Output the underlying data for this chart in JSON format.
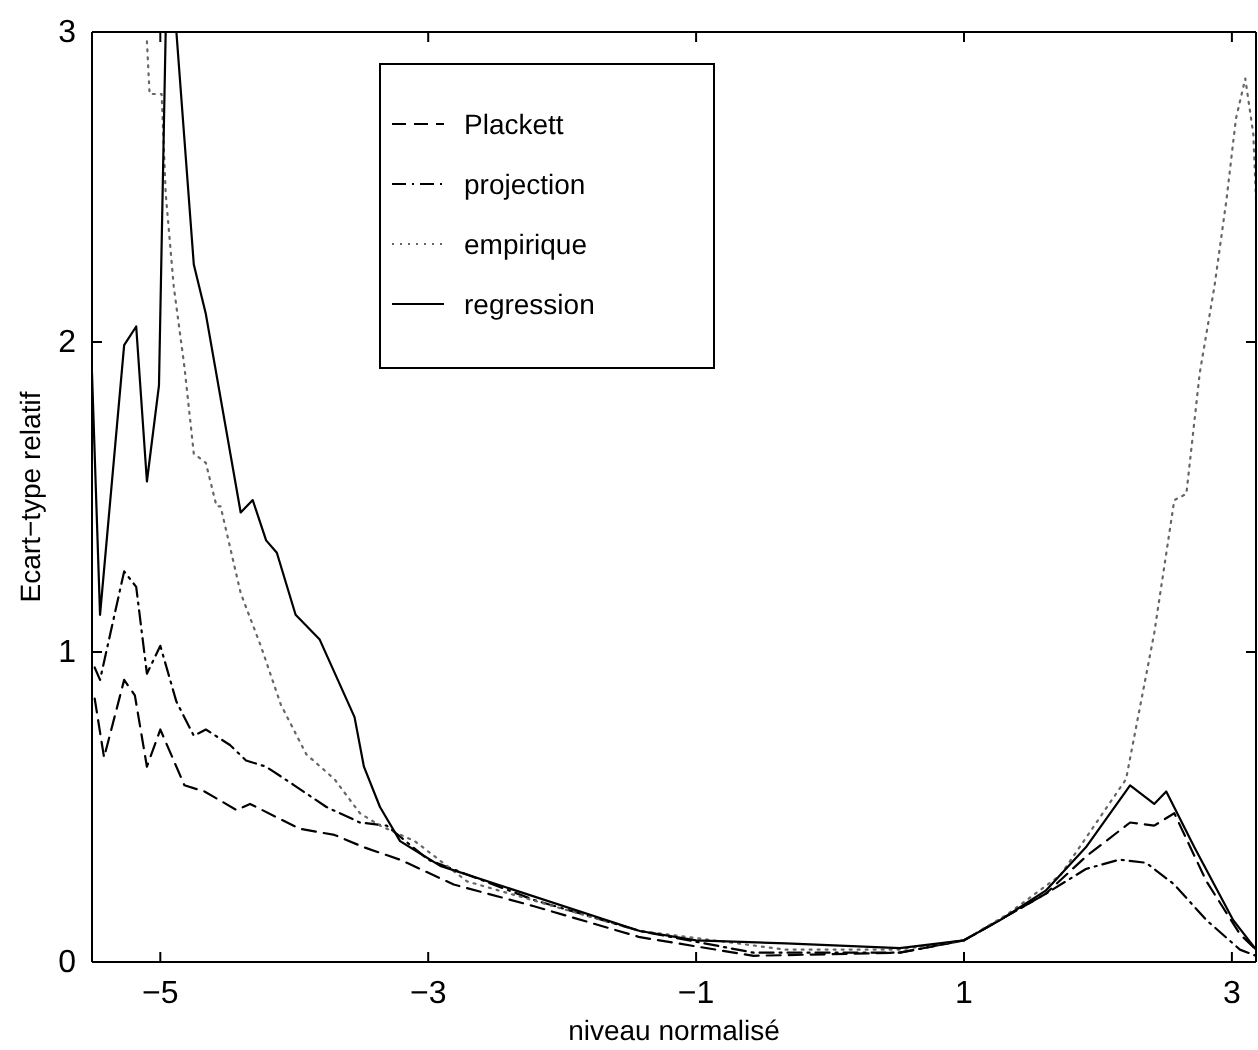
{
  "chart_data": {
    "type": "line",
    "xlabel": "niveau normalisé",
    "ylabel": "Ecart−type relatif",
    "xlim": [
      -5.51,
      3.18
    ],
    "ylim": [
      0,
      3
    ],
    "xticks": [
      -5,
      -3,
      -1,
      1,
      3
    ],
    "yticks": [
      0,
      1,
      2,
      3
    ],
    "grid": false,
    "legend": "top left",
    "series": [
      {
        "name": "Plackett",
        "color": "#000000",
        "line_style": "dashed",
        "x": [
          -5.49,
          -5.42,
          -5.27,
          -5.19,
          -5.1,
          -5.0,
          -4.82,
          -4.67,
          -4.43,
          -4.33,
          -4.1,
          -3.96,
          -3.7,
          -3.48,
          -3.21,
          -2.81,
          -2.21,
          -1.42,
          -0.57,
          0.52,
          1.0,
          1.61,
          1.91,
          2.24,
          2.42,
          2.57,
          2.81,
          3.06,
          3.18
        ],
        "values": [
          0.85,
          0.66,
          0.91,
          0.86,
          0.63,
          0.75,
          0.57,
          0.55,
          0.49,
          0.51,
          0.46,
          0.43,
          0.41,
          0.37,
          0.33,
          0.25,
          0.18,
          0.08,
          0.02,
          0.03,
          0.07,
          0.22,
          0.34,
          0.45,
          0.44,
          0.48,
          0.26,
          0.09,
          0.04
        ]
      },
      {
        "name": "projection",
        "color": "#000000",
        "line_style": "dashdot",
        "x": [
          -5.49,
          -5.45,
          -5.27,
          -5.18,
          -5.1,
          -5.0,
          -4.88,
          -4.75,
          -4.66,
          -4.48,
          -4.36,
          -4.21,
          -4.0,
          -3.76,
          -3.51,
          -3.31,
          -3.0,
          -2.21,
          -1.42,
          -0.57,
          0.52,
          1.0,
          1.61,
          1.91,
          2.16,
          2.36,
          2.57,
          2.81,
          3.06,
          3.18
        ],
        "values": [
          0.95,
          0.91,
          1.26,
          1.21,
          0.93,
          1.02,
          0.84,
          0.73,
          0.75,
          0.7,
          0.65,
          0.63,
          0.57,
          0.5,
          0.45,
          0.44,
          0.33,
          0.2,
          0.1,
          0.03,
          0.03,
          0.07,
          0.22,
          0.3,
          0.33,
          0.32,
          0.25,
          0.135,
          0.04,
          0.02
        ]
      },
      {
        "name": "empirique",
        "color": "#666666",
        "line_style": "dotted",
        "x": [
          -5.1,
          -5.08,
          -4.99,
          -4.96,
          -4.9,
          -4.82,
          -4.75,
          -4.66,
          -4.58,
          -4.55,
          -4.4,
          -4.25,
          -4.1,
          -3.91,
          -3.7,
          -3.51,
          -3.36,
          -3.1,
          -2.71,
          -1.42,
          -0.33,
          0.52,
          1.0,
          1.31,
          1.72,
          2.21,
          2.42,
          2.57,
          2.66,
          2.76,
          2.87,
          2.96,
          3.03,
          3.1,
          3.16,
          3.18
        ],
        "values": [
          2.97,
          2.8,
          2.8,
          2.48,
          2.18,
          1.92,
          1.64,
          1.61,
          1.47,
          1.47,
          1.19,
          1.02,
          0.83,
          0.67,
          0.59,
          0.48,
          0.44,
          0.39,
          0.26,
          0.1,
          0.04,
          0.04,
          0.07,
          0.15,
          0.28,
          0.59,
          1.06,
          1.49,
          1.51,
          1.9,
          2.18,
          2.46,
          2.72,
          2.85,
          2.67,
          2.46
        ]
      },
      {
        "name": "regression",
        "color": "#000000",
        "line_style": "solid",
        "x": [
          -5.51,
          -5.45,
          -5.27,
          -5.18,
          -5.1,
          -5.01,
          -4.96,
          -4.88,
          -4.75,
          -4.66,
          -4.4,
          -4.31,
          -4.21,
          -4.13,
          -3.99,
          -3.81,
          -3.55,
          -3.48,
          -3.36,
          -3.21,
          -3.06,
          -2.91,
          -1.42,
          -1.0,
          -0.33,
          0.52,
          1.0,
          1.27,
          1.61,
          1.91,
          2.24,
          2.42,
          2.51,
          2.72,
          3.01,
          3.18
        ],
        "values": [
          1.9,
          1.12,
          1.99,
          2.05,
          1.55,
          1.86,
          3.0,
          3.0,
          2.25,
          2.09,
          1.45,
          1.49,
          1.36,
          1.32,
          1.12,
          1.04,
          0.79,
          0.63,
          0.5,
          0.39,
          0.35,
          0.31,
          0.1,
          0.07,
          0.06,
          0.045,
          0.07,
          0.135,
          0.23,
          0.37,
          0.57,
          0.51,
          0.55,
          0.37,
          0.135,
          0.04
        ]
      }
    ]
  }
}
